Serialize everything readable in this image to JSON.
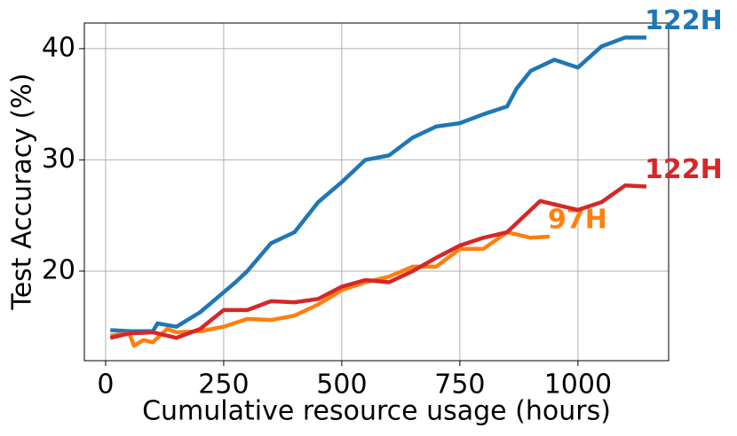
{
  "chart_data": {
    "type": "line",
    "xlabel": "Cumulative resource usage (hours)",
    "ylabel": "Test Accuracy (%)",
    "xlim": [
      -45,
      1192
    ],
    "ylim": [
      11.95,
      42.3
    ],
    "xticks": [
      0,
      250,
      500,
      750,
      1000
    ],
    "yticks": [
      20,
      30,
      40
    ],
    "grid": true,
    "series": [
      {
        "label": "122H",
        "color": "#1f77b4",
        "x": [
          10,
          50,
          100,
          110,
          150,
          200,
          250,
          275,
          300,
          350,
          400,
          450,
          500,
          550,
          600,
          650,
          700,
          750,
          800,
          850,
          870,
          900,
          950,
          1000,
          1050,
          1100,
          1145
        ],
        "values": [
          14.7,
          14.6,
          14.6,
          15.3,
          15.0,
          16.3,
          18.1,
          19.0,
          20.0,
          22.5,
          23.5,
          26.2,
          28.0,
          30.0,
          30.4,
          32.0,
          33.0,
          33.3,
          34.1,
          34.8,
          36.4,
          38.0,
          39.0,
          38.3,
          40.2,
          41.0,
          41.0
        ]
      },
      {
        "label": "97H",
        "color": "#ff7f0e",
        "x": [
          10,
          50,
          60,
          80,
          100,
          130,
          150,
          200,
          250,
          300,
          350,
          400,
          450,
          500,
          550,
          600,
          650,
          700,
          750,
          800,
          850,
          900,
          940
        ],
        "values": [
          14.2,
          14.4,
          13.3,
          13.8,
          13.6,
          14.8,
          14.5,
          14.6,
          15.0,
          15.7,
          15.6,
          16.0,
          17.0,
          18.3,
          19.0,
          19.5,
          20.4,
          20.4,
          22.0,
          22.0,
          23.5,
          23.0,
          23.1
        ]
      },
      {
        "label": "122H",
        "color": "#d62728",
        "x": [
          10,
          50,
          100,
          150,
          200,
          250,
          300,
          350,
          400,
          450,
          500,
          550,
          600,
          650,
          700,
          750,
          800,
          850,
          900,
          920,
          950,
          1000,
          1050,
          1100,
          1145
        ],
        "values": [
          14.0,
          14.4,
          14.5,
          14.0,
          14.8,
          16.5,
          16.5,
          17.3,
          17.2,
          17.5,
          18.6,
          19.2,
          19.0,
          20.0,
          21.2,
          22.3,
          23.0,
          23.5,
          25.5,
          26.3,
          26.0,
          25.5,
          26.2,
          27.7,
          27.6
        ]
      }
    ]
  }
}
